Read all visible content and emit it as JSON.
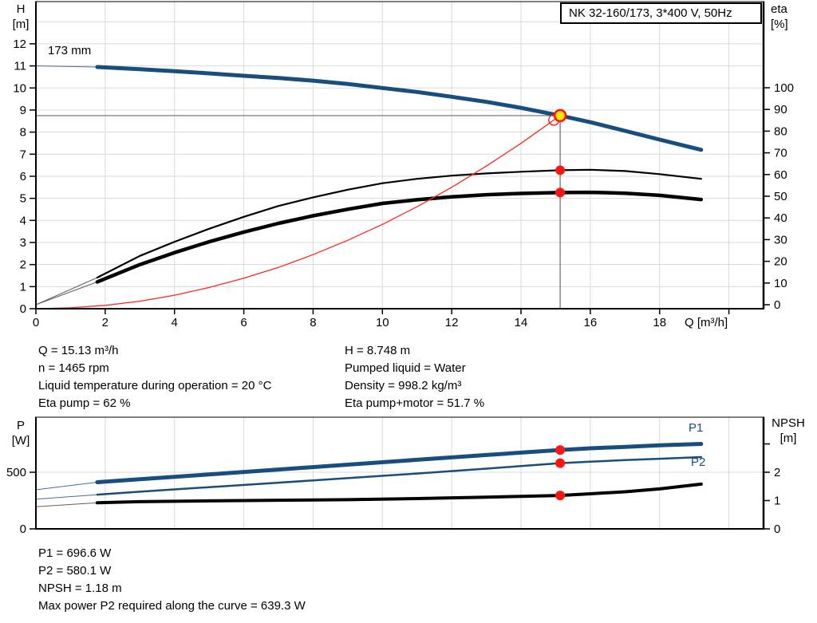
{
  "title_box": {
    "label": "NK 32-160/173, 3*400 V, 50Hz"
  },
  "impeller_label": "173 mm",
  "axis_labels": {
    "h": [
      "H",
      "[m]"
    ],
    "eta": [
      "eta",
      "[%]"
    ],
    "p": [
      "P",
      "[W]"
    ],
    "npsh": [
      "NPSH",
      "[m]"
    ],
    "q": "Q [m³/h]"
  },
  "curve_labels": {
    "p1": "P1",
    "p2": "P2"
  },
  "duty_info": {
    "left": [
      "Q = 15.13 m³/h",
      "n = 1465 rpm",
      "Liquid temperature during operation = 20 °C",
      "Eta pump = 62 %"
    ],
    "right": [
      "H = 8.748 m",
      "Pumped liquid = Water",
      "Density = 998.2 kg/m³",
      "Eta pump+motor = 51.7 %"
    ]
  },
  "power_info": [
    "P1 = 696.6 W",
    "P2 = 580.1 W",
    "NPSH = 1.18 m",
    "Max power P2 required along the curve = 639.3 W"
  ],
  "colors": {
    "curve_blue": "#174e7d",
    "curve_black": "#000000",
    "system_red": "#ff2619",
    "marker_red": "#ff1414",
    "duty_yellow": "#ffe600",
    "grid": "#d9d9d9",
    "ref_line": "#6b6b6b",
    "lead_gray": "#606060",
    "lead_blue": "#46709b"
  },
  "chart_data": [
    {
      "type": "line",
      "title": "NK 32-160/173, 3*400 V, 50Hz",
      "xlabel": "Q [m³/h]",
      "x_axis": {
        "min": 0,
        "max": 21,
        "grid_ticks": [
          2,
          4,
          6,
          8,
          10,
          12,
          14,
          16,
          18,
          20
        ],
        "axis_ticks": [
          0,
          2,
          4,
          6,
          8,
          10,
          12,
          14,
          16,
          18,
          20
        ],
        "labeled_ticks": [
          0,
          2,
          4,
          6,
          8,
          10,
          12,
          14,
          16,
          18
        ]
      },
      "y_left": {
        "label": "H [m]",
        "min": 0,
        "max": 13.9,
        "grid_ticks": [
          1,
          2,
          3,
          4,
          5,
          6,
          7,
          8,
          9,
          10,
          11,
          12,
          13
        ],
        "axis_ticks": [
          0,
          1,
          2,
          3,
          4,
          5,
          6,
          7,
          8,
          9,
          10,
          11,
          12
        ],
        "labeled_ticks": [
          0,
          1,
          2,
          3,
          4,
          5,
          6,
          7,
          8,
          9,
          10,
          11,
          12
        ]
      },
      "y_right": {
        "label": "eta [%]",
        "min": 0,
        "max": 140,
        "axis_ticks": [
          0,
          10,
          20,
          30,
          40,
          50,
          60,
          70,
          80,
          90,
          100
        ],
        "labeled_ticks": [
          0,
          10,
          20,
          30,
          40,
          50,
          60,
          70,
          80,
          90,
          100
        ]
      },
      "ref_lines": {
        "q_value": 15.13,
        "h_value": 8.748
      },
      "series": [
        {
          "name": "pump-curve-173mm",
          "color": "curve_blue",
          "width": 5,
          "axis": "left",
          "lead_color": "lead_blue",
          "lead": [
            [
              0,
              11.0
            ],
            [
              1.77,
              10.95
            ]
          ],
          "points": [
            [
              1.77,
              10.95
            ],
            [
              2,
              10.93
            ],
            [
              3,
              10.85
            ],
            [
              4,
              10.76
            ],
            [
              5,
              10.66
            ],
            [
              6,
              10.55
            ],
            [
              7,
              10.45
            ],
            [
              8,
              10.33
            ],
            [
              9,
              10.18
            ],
            [
              10,
              10.0
            ],
            [
              11,
              9.82
            ],
            [
              12,
              9.6
            ],
            [
              13,
              9.37
            ],
            [
              14,
              9.1
            ],
            [
              15.13,
              8.748
            ],
            [
              16,
              8.45
            ],
            [
              17,
              8.06
            ],
            [
              18,
              7.66
            ],
            [
              19.2,
              7.2
            ]
          ]
        },
        {
          "name": "eta-pump-curve",
          "color": "curve_black",
          "width": 2.2,
          "axis": "right",
          "lead_color": "lead_gray",
          "lead": [
            [
              0,
              0
            ],
            [
              1.77,
              12.5
            ]
          ],
          "points": [
            [
              1.77,
              12.5
            ],
            [
              3,
              22.5
            ],
            [
              4,
              29
            ],
            [
              5,
              35
            ],
            [
              6,
              40.5
            ],
            [
              7,
              45.5
            ],
            [
              8,
              49.5
            ],
            [
              9,
              53
            ],
            [
              10,
              56
            ],
            [
              11,
              58
            ],
            [
              12,
              59.5
            ],
            [
              13,
              60.5
            ],
            [
              14,
              61.3
            ],
            [
              15.13,
              62
            ],
            [
              16,
              62.2
            ],
            [
              17,
              61.6
            ],
            [
              18,
              60.2
            ],
            [
              19.2,
              58
            ]
          ]
        },
        {
          "name": "eta-pump-motor-curve",
          "color": "curve_black",
          "width": 4.5,
          "axis": "right",
          "lead_color": "lead_gray",
          "lead": [
            [
              0,
              0
            ],
            [
              1.77,
              10.5
            ]
          ],
          "points": [
            [
              1.77,
              10.5
            ],
            [
              3,
              18.5
            ],
            [
              4,
              24
            ],
            [
              5,
              29
            ],
            [
              6,
              33.5
            ],
            [
              7,
              37.5
            ],
            [
              8,
              41
            ],
            [
              9,
              44
            ],
            [
              10,
              46.7
            ],
            [
              11,
              48.4
            ],
            [
              12,
              49.7
            ],
            [
              13,
              50.7
            ],
            [
              14,
              51.3
            ],
            [
              15.13,
              51.7
            ],
            [
              16,
              51.8
            ],
            [
              17,
              51.4
            ],
            [
              18,
              50.4
            ],
            [
              19.2,
              48.5
            ]
          ]
        },
        {
          "name": "system-curve",
          "color": "system_red",
          "width": 1.3,
          "axis": "left",
          "points": [
            [
              0,
              0
            ],
            [
              1,
              0.04
            ],
            [
              2,
              0.15
            ],
            [
              3,
              0.34
            ],
            [
              4,
              0.61
            ],
            [
              5,
              0.96
            ],
            [
              6,
              1.38
            ],
            [
              7,
              1.87
            ],
            [
              8,
              2.45
            ],
            [
              9,
              3.1
            ],
            [
              10,
              3.82
            ],
            [
              11,
              4.62
            ],
            [
              12,
              5.5
            ],
            [
              13,
              6.46
            ],
            [
              14,
              7.49
            ],
            [
              15.13,
              8.748
            ]
          ]
        }
      ],
      "markers": [
        {
          "name": "system-curve-end-marker",
          "style": "open",
          "axis": "left",
          "q": 14.95,
          "v": 8.55
        },
        {
          "name": "eta-pump-duty-point",
          "style": "dot",
          "axis": "right",
          "q": 15.13,
          "v": 62
        },
        {
          "name": "eta-pump-motor-duty-point",
          "style": "dot",
          "axis": "right",
          "q": 15.13,
          "v": 51.7
        },
        {
          "name": "duty-point",
          "style": "duty",
          "axis": "left",
          "q": 15.13,
          "v": 8.748
        }
      ]
    },
    {
      "type": "line",
      "title": "Power and NPSH curves",
      "x_axis": {
        "min": 0,
        "max": 21,
        "grid_ticks": [
          2,
          4,
          6,
          8,
          10,
          12,
          14,
          16,
          18,
          20
        ],
        "axis_ticks": [],
        "labeled_ticks": []
      },
      "y_left": {
        "label": "P [W]",
        "min": 0,
        "max": 985,
        "grid_ticks": [
          500
        ],
        "axis_ticks": [
          0,
          500
        ],
        "labeled_ticks": [
          0,
          500
        ]
      },
      "y_right": {
        "label": "NPSH [m]",
        "min": 0,
        "max": 3.9,
        "axis_ticks": [
          0,
          1,
          2,
          3
        ],
        "labeled_ticks": [
          0,
          1,
          2
        ]
      },
      "series": [
        {
          "name": "p1-curve",
          "color": "curve_blue",
          "width": 5,
          "axis": "left",
          "lead_color": "lead_blue",
          "lead": [
            [
              0,
              345
            ],
            [
              1.77,
              412
            ]
          ],
          "points": [
            [
              1.77,
              412
            ],
            [
              3,
              438
            ],
            [
              5,
              481
            ],
            [
              7,
              524
            ],
            [
              9,
              567
            ],
            [
              11,
              610
            ],
            [
              13,
              652
            ],
            [
              14,
              673
            ],
            [
              15.13,
              696.6
            ],
            [
              16,
              711
            ],
            [
              17,
              724
            ],
            [
              18,
              737
            ],
            [
              19.2,
              750
            ]
          ]
        },
        {
          "name": "p2-curve",
          "color": "curve_blue",
          "width": 2.5,
          "axis": "left",
          "lead_color": "lead_blue",
          "lead": [
            [
              0,
              262
            ],
            [
              1.77,
              302
            ]
          ],
          "points": [
            [
              1.77,
              302
            ],
            [
              3,
              328
            ],
            [
              5,
              368
            ],
            [
              7,
              408
            ],
            [
              9,
              448
            ],
            [
              11,
              489
            ],
            [
              13,
              532
            ],
            [
              14,
              555
            ],
            [
              15.13,
              580.1
            ],
            [
              16,
              594
            ],
            [
              17,
              607
            ],
            [
              18,
              619
            ],
            [
              19.2,
              634
            ]
          ]
        },
        {
          "name": "npsh-curve",
          "color": "curve_black",
          "width": 4,
          "axis": "right",
          "lead_color": "lead_gray",
          "lead": [
            [
              0,
              0.78
            ],
            [
              1.77,
              0.92
            ]
          ],
          "points": [
            [
              1.77,
              0.92
            ],
            [
              3,
              0.96
            ],
            [
              5,
              0.99
            ],
            [
              7,
              1.01
            ],
            [
              9,
              1.03
            ],
            [
              11,
              1.07
            ],
            [
              13,
              1.12
            ],
            [
              14,
              1.15
            ],
            [
              15.13,
              1.18
            ],
            [
              16,
              1.24
            ],
            [
              17,
              1.31
            ],
            [
              18,
              1.41
            ],
            [
              19.2,
              1.58
            ]
          ]
        }
      ],
      "markers": [
        {
          "name": "p1-duty-point",
          "style": "dot",
          "axis": "left",
          "q": 15.13,
          "v": 696.6
        },
        {
          "name": "p2-duty-point",
          "style": "dot",
          "axis": "left",
          "q": 15.13,
          "v": 580.1
        },
        {
          "name": "npsh-duty-point",
          "style": "dot",
          "axis": "right",
          "q": 15.13,
          "v": 1.18
        }
      ]
    }
  ]
}
